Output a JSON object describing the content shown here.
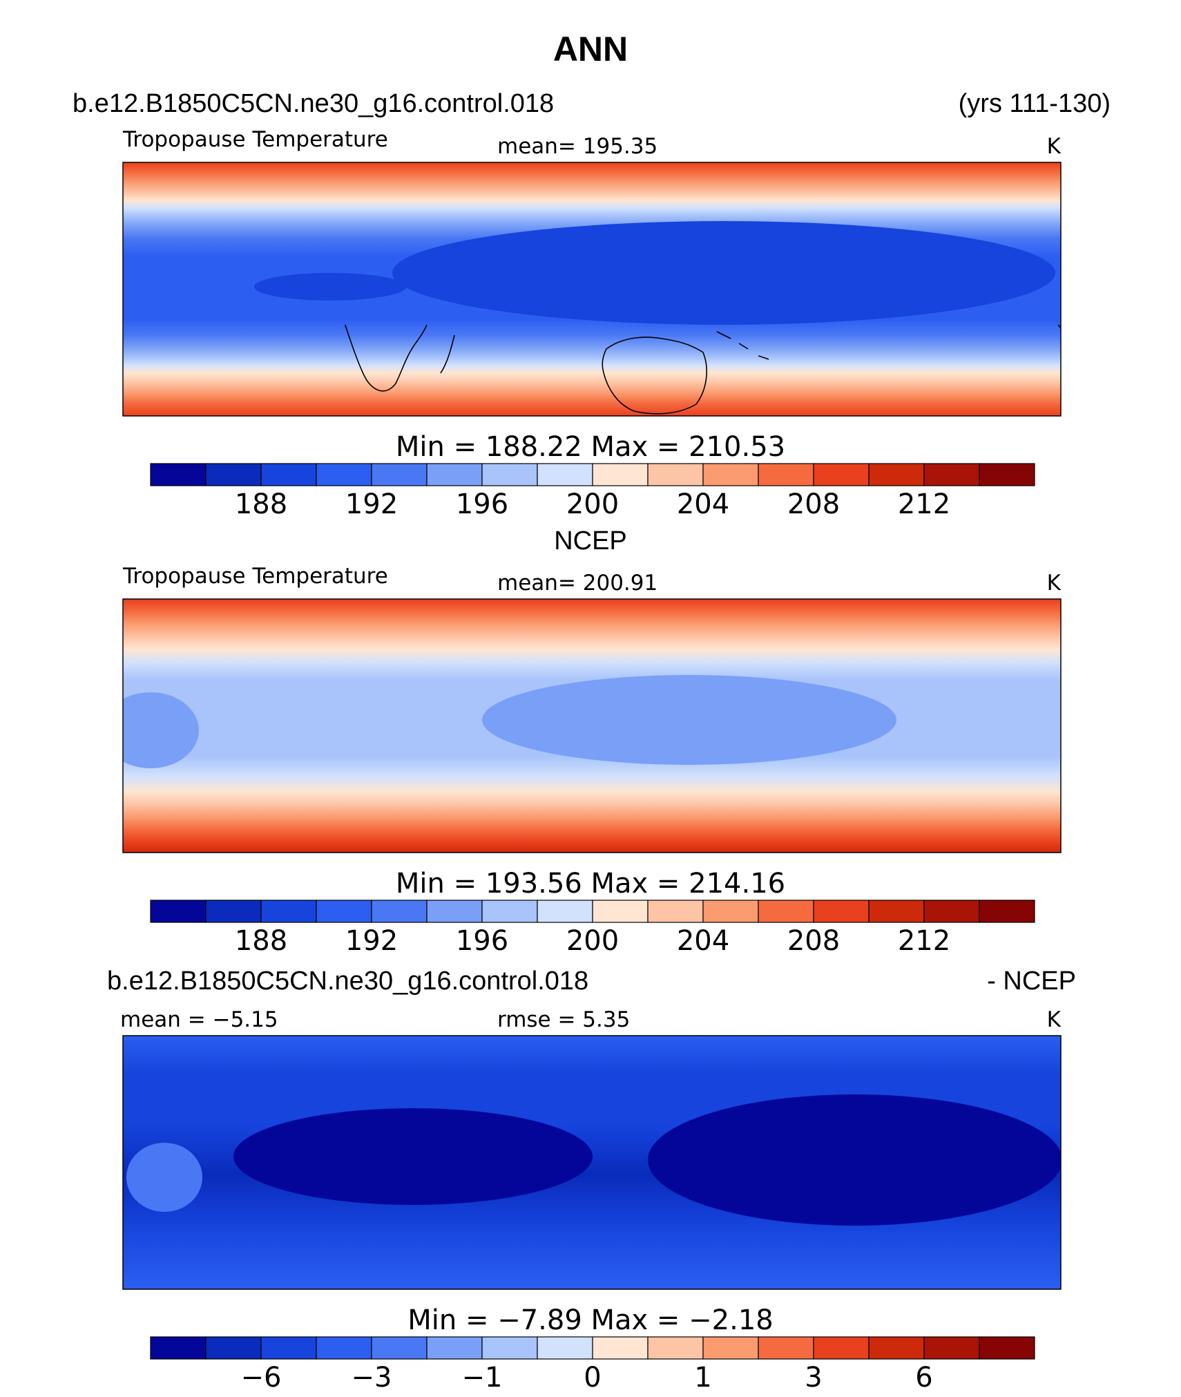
{
  "figure": {
    "season": "ANN",
    "case_name": "b.e12.B1850C5CN.ne30_g16.control.018",
    "years": "(yrs 111-130)",
    "obs_name": "NCEP",
    "diff_case": "b.e12.B1850C5CN.ne30_g16.control.018",
    "diff_suffix": "- NCEP"
  },
  "chart_data": [
    {
      "type": "heatmap",
      "panel": "model",
      "title": "Tropopause Temperature",
      "mean_label": "mean=  195.35",
      "units": "K",
      "min_max_label": "Min  =  188.22  Max  =  210.53",
      "mean": 195.35,
      "min": 188.22,
      "max": 210.53,
      "colorbar_ticks": [
        "188",
        "192",
        "196",
        "200",
        "204",
        "208",
        "212"
      ],
      "levels": [
        186,
        188,
        190,
        192,
        194,
        196,
        198,
        200,
        202,
        204,
        206,
        208,
        210,
        212,
        214
      ]
    },
    {
      "type": "heatmap",
      "panel": "obs",
      "title": "Tropopause Temperature",
      "mean_label": "mean=  200.91",
      "units": "K",
      "min_max_label": "Min  =  193.56  Max  =  214.16",
      "mean": 200.91,
      "min": 193.56,
      "max": 214.16,
      "colorbar_ticks": [
        "188",
        "192",
        "196",
        "200",
        "204",
        "208",
        "212"
      ],
      "levels": [
        186,
        188,
        190,
        192,
        194,
        196,
        198,
        200,
        202,
        204,
        206,
        208,
        210,
        212,
        214
      ]
    },
    {
      "type": "heatmap",
      "panel": "difference",
      "mean_label": "mean  =   −5.15",
      "rmse_label": "rmse  =     5.35",
      "units": "K",
      "min_max_label": "Min  =    −7.89  Max  =    −2.18",
      "mean": -5.15,
      "rmse": 5.35,
      "min": -7.89,
      "max": -2.18,
      "colorbar_ticks": [
        "−6",
        "−3",
        "−1",
        "0",
        "1",
        "3",
        "6"
      ],
      "levels": [
        -8,
        -6,
        -4,
        -3,
        -2,
        -1,
        -0.5,
        0,
        0.5,
        1,
        2,
        3,
        4,
        6,
        8
      ]
    }
  ],
  "colorbar_colors": [
    "#04069a",
    "#0a2bbb",
    "#1644dd",
    "#2c5ef2",
    "#4a78f5",
    "#7a9ff7",
    "#a8c4fb",
    "#d2e1fd",
    "#fee6d2",
    "#fdc4a6",
    "#fb9b70",
    "#f56b3f",
    "#e9401d",
    "#cc2a0b",
    "#a91407",
    "#870404"
  ]
}
